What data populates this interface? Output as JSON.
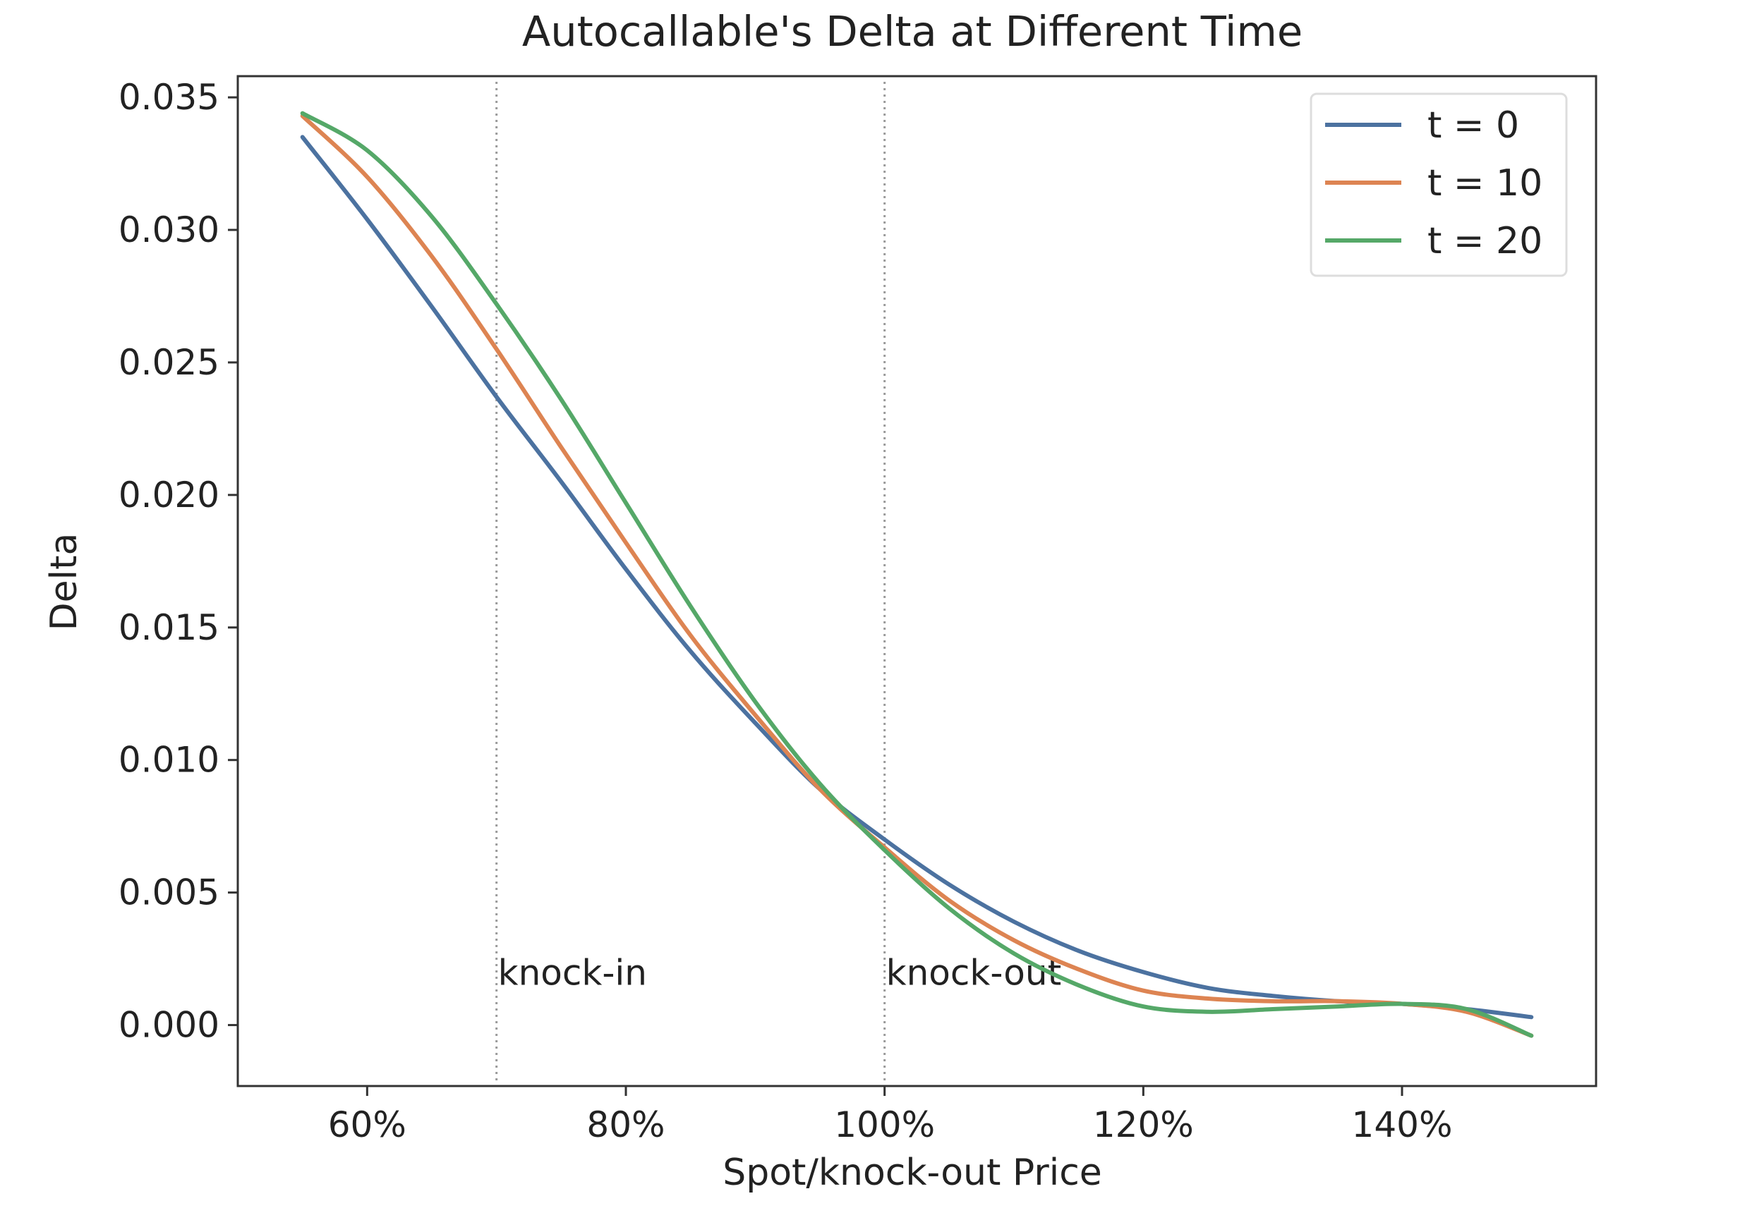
{
  "chart_data": {
    "type": "line",
    "title": "Autocallable's Delta at Different Time",
    "xlabel": "Spot/knock-out Price",
    "ylabel": "Delta",
    "xlim": [
      50,
      155
    ],
    "ylim": [
      -0.0023,
      0.0358
    ],
    "x_ticks": [
      60,
      80,
      100,
      120,
      140
    ],
    "x_tick_labels": [
      "60%",
      "80%",
      "100%",
      "120%",
      "140%"
    ],
    "y_ticks": [
      0.0,
      0.005,
      0.01,
      0.015,
      0.02,
      0.025,
      0.03,
      0.035
    ],
    "y_tick_labels": [
      "0.000",
      "0.005",
      "0.010",
      "0.015",
      "0.020",
      "0.025",
      "0.030",
      "0.035"
    ],
    "grid": false,
    "legend_position": "top-right",
    "x": [
      55,
      60,
      65,
      70,
      75,
      80,
      85,
      90,
      95,
      100,
      105,
      110,
      115,
      120,
      125,
      130,
      135,
      140,
      145,
      150
    ],
    "series": [
      {
        "name": "t = 0",
        "color": "#4c72a0",
        "values": [
          0.0335,
          0.0304,
          0.0271,
          0.0237,
          0.0205,
          0.0172,
          0.0141,
          0.0114,
          0.0089,
          0.007,
          0.0053,
          0.0039,
          0.0028,
          0.002,
          0.0014,
          0.0011,
          0.0009,
          0.0008,
          0.0006,
          0.0003
        ]
      },
      {
        "name": "t = 10",
        "color": "#dd8452",
        "values": [
          0.0343,
          0.032,
          0.029,
          0.0255,
          0.0218,
          0.0182,
          0.0147,
          0.0117,
          0.0089,
          0.0067,
          0.0047,
          0.0032,
          0.0021,
          0.0013,
          0.001,
          0.0009,
          0.0009,
          0.0008,
          0.0005,
          -0.0004
        ]
      },
      {
        "name": "t = 20",
        "color": "#55a868",
        "values": [
          0.0344,
          0.033,
          0.0305,
          0.0272,
          0.0236,
          0.0197,
          0.0158,
          0.0122,
          0.0091,
          0.0066,
          0.0044,
          0.0027,
          0.0015,
          0.0007,
          0.0005,
          0.0006,
          0.0007,
          0.0008,
          0.0006,
          -0.0004
        ]
      }
    ],
    "vlines": [
      {
        "x": 70,
        "label": "knock-in"
      },
      {
        "x": 100,
        "label": "knock-out"
      }
    ]
  }
}
